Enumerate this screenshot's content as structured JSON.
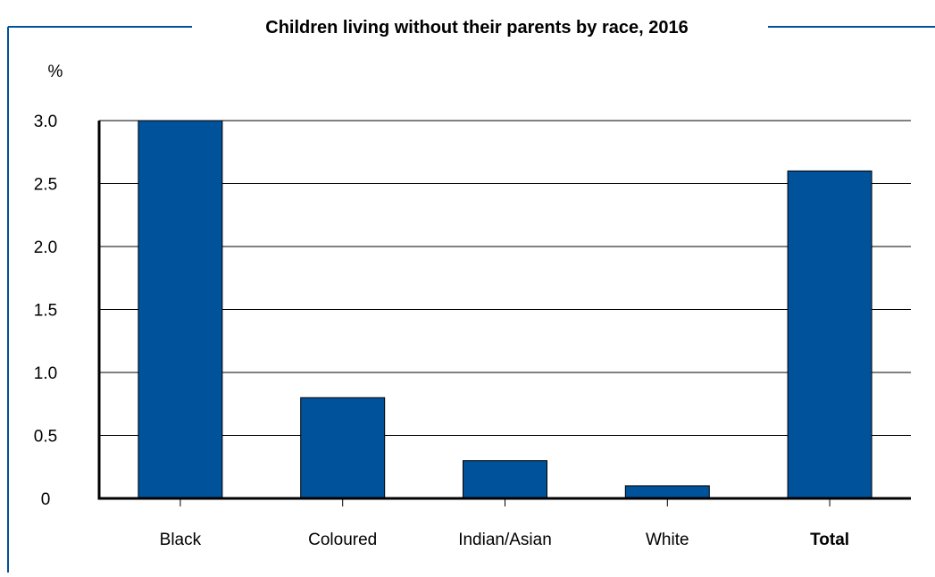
{
  "chart_data": {
    "type": "bar",
    "title": "Children living without their parents by race, 2016",
    "ylabel": "%",
    "xlabel": "",
    "categories": [
      "Black",
      "Coloured",
      "Indian/Asian",
      "White",
      "Total"
    ],
    "values": [
      3.0,
      0.8,
      0.3,
      0.1,
      2.6
    ],
    "ylim": [
      0,
      3.0
    ],
    "yticks": [
      0,
      0.5,
      1.0,
      1.5,
      2.0,
      2.5,
      3.0
    ],
    "ytick_labels": [
      "0",
      "0.5",
      "1.0",
      "1.5",
      "2.0",
      "2.5",
      "3.0"
    ],
    "grid": true,
    "bold_categories": [
      "Total"
    ],
    "colors": {
      "bar": "#00529B",
      "frame": "#00529B",
      "axis": "#000000",
      "grid": "#000000",
      "text": "#000000"
    }
  }
}
